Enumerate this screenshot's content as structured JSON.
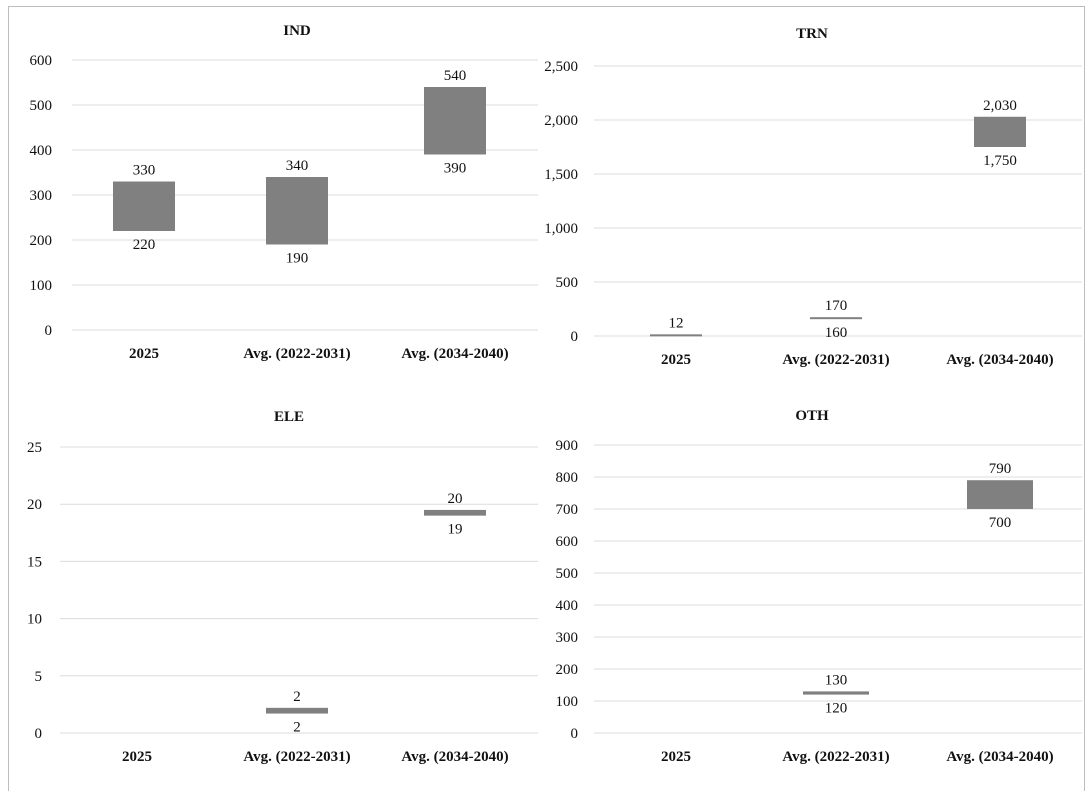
{
  "chart_data": [
    {
      "type": "bar",
      "subtype": "floating-range",
      "title": "IND",
      "categories": [
        "2025",
        "Avg. (2022-2031)",
        "Avg. (2034-2040)"
      ],
      "low": [
        220,
        190,
        390
      ],
      "high": [
        330,
        340,
        540
      ],
      "low_labels": [
        "220",
        "190",
        "390"
      ],
      "high_labels": [
        "330",
        "340",
        "540"
      ],
      "yticks": [
        "0",
        "100",
        "200",
        "300",
        "400",
        "500",
        "600"
      ],
      "ylim": [
        0,
        600
      ],
      "grid": true,
      "color": "#808080"
    },
    {
      "type": "bar",
      "subtype": "floating-range",
      "title": "TRN",
      "categories": [
        "2025",
        "Avg. (2022-2031)",
        "Avg. (2034-2040)"
      ],
      "low": [
        0,
        160,
        1750
      ],
      "high": [
        12,
        170,
        2030
      ],
      "low_labels": [
        "",
        "160",
        "1,750"
      ],
      "high_labels": [
        "12",
        "170",
        "2,030"
      ],
      "yticks": [
        "0",
        "500",
        "1,000",
        "1,500",
        "2,000",
        "2,500"
      ],
      "ylim": [
        0,
        2500
      ],
      "grid": true,
      "color": "#808080"
    },
    {
      "type": "bar",
      "subtype": "floating-range",
      "title": "ELE",
      "categories": [
        "2025",
        "Avg. (2022-2031)",
        "Avg. (2034-2040)"
      ],
      "low": [
        null,
        1.7,
        19
      ],
      "high": [
        null,
        2.2,
        19.5
      ],
      "low_labels": [
        "",
        "2",
        "19"
      ],
      "high_labels": [
        "",
        "2",
        "20"
      ],
      "yticks": [
        "0",
        "5",
        "10",
        "15",
        "20",
        "25"
      ],
      "ylim": [
        0,
        25
      ],
      "grid": true,
      "color": "#808080"
    },
    {
      "type": "bar",
      "subtype": "floating-range",
      "title": "OTH",
      "categories": [
        "2025",
        "Avg. (2022-2031)",
        "Avg. (2034-2040)"
      ],
      "low": [
        null,
        120,
        700
      ],
      "high": [
        null,
        130,
        790
      ],
      "low_labels": [
        "",
        "120",
        "700"
      ],
      "high_labels": [
        "",
        "130",
        "790"
      ],
      "yticks": [
        "0",
        "100",
        "200",
        "300",
        "400",
        "500",
        "600",
        "700",
        "800",
        "900"
      ],
      "ylim": [
        0,
        900
      ],
      "grid": true,
      "color": "#808080"
    }
  ]
}
